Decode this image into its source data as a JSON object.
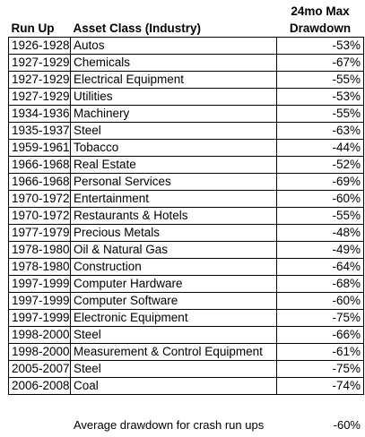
{
  "header": {
    "run_up": "Run Up",
    "asset_class": "Asset Class (Industry)",
    "max_drawdown_line1": "24mo Max",
    "max_drawdown_line2": "Drawdown"
  },
  "rows": [
    {
      "run_up": "1926-1928",
      "asset": "Autos",
      "drawdown": "-53%"
    },
    {
      "run_up": "1927-1929",
      "asset": "Chemicals",
      "drawdown": "-67%"
    },
    {
      "run_up": "1927-1929",
      "asset": "Electrical Equipment",
      "drawdown": "-55%"
    },
    {
      "run_up": "1927-1929",
      "asset": "Utilities",
      "drawdown": "-53%"
    },
    {
      "run_up": "1934-1936",
      "asset": "Machinery",
      "drawdown": "-55%"
    },
    {
      "run_up": "1935-1937",
      "asset": "Steel",
      "drawdown": "-63%"
    },
    {
      "run_up": "1959-1961",
      "asset": "Tobacco",
      "drawdown": "-44%"
    },
    {
      "run_up": "1966-1968",
      "asset": "Real Estate",
      "drawdown": "-52%"
    },
    {
      "run_up": "1966-1968",
      "asset": "Personal Services",
      "drawdown": "-69%"
    },
    {
      "run_up": "1970-1972",
      "asset": "Entertainment",
      "drawdown": "-60%"
    },
    {
      "run_up": "1970-1972",
      "asset": "Restaurants & Hotels",
      "drawdown": "-55%"
    },
    {
      "run_up": "1977-1979",
      "asset": "Precious Metals",
      "drawdown": "-48%"
    },
    {
      "run_up": "1978-1980",
      "asset": "Oil & Natural Gas",
      "drawdown": "-49%"
    },
    {
      "run_up": "1978-1980",
      "asset": "Construction",
      "drawdown": "-64%"
    },
    {
      "run_up": "1997-1999",
      "asset": "Computer Hardware",
      "drawdown": "-68%"
    },
    {
      "run_up": "1997-1999",
      "asset": "Computer Software",
      "drawdown": "-60%"
    },
    {
      "run_up": "1997-1999",
      "asset": "Electronic Equipment",
      "drawdown": "-75%"
    },
    {
      "run_up": "1998-2000",
      "asset": "Steel",
      "drawdown": "-66%"
    },
    {
      "run_up": "1998-2000",
      "asset": "Measurement & Control Equipment",
      "drawdown": "-61%"
    },
    {
      "run_up": "2005-2007",
      "asset": "Steel",
      "drawdown": "-75%"
    },
    {
      "run_up": "2006-2008",
      "asset": "Coal",
      "drawdown": "-74%"
    }
  ],
  "footer": {
    "label": "Average drawdown for crash run ups",
    "value": "-60%"
  }
}
